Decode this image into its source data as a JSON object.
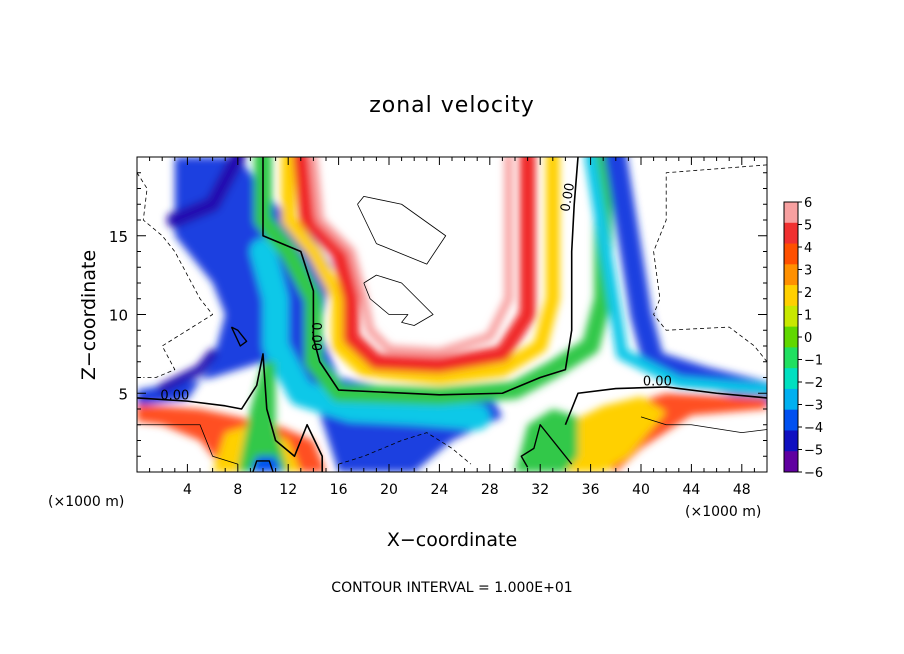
{
  "chart_data": {
    "type": "heatmap",
    "title": "zonal velocity",
    "xlabel": "X−coordinate",
    "ylabel": "Z−coordinate",
    "x_unit_label": "(×1000 m)",
    "x_unit_label_right": "(×1000 m)",
    "footer": "CONTOUR INTERVAL = 1.000E+01",
    "xlim": [
      0,
      50
    ],
    "ylim": [
      0,
      20
    ],
    "x_ticks": [
      4,
      8,
      12,
      16,
      20,
      24,
      28,
      32,
      36,
      40,
      44,
      48
    ],
    "y_ticks": [
      5,
      10,
      15
    ],
    "colorbar": {
      "min": -6,
      "max": 6,
      "labels": [
        "6",
        "5",
        "4",
        "3",
        "2",
        "1",
        "0",
        "−1",
        "−2",
        "−3",
        "−4",
        "−5",
        "−6"
      ],
      "colors": [
        "#f7a0a0",
        "#f03030",
        "#ff5000",
        "#ff9000",
        "#ffd000",
        "#c8e800",
        "#60d800",
        "#20e060",
        "#00e0c0",
        "#00b0f0",
        "#0050f0",
        "#1010c0",
        "#6000a0"
      ]
    },
    "contour_labels": [
      {
        "text": "0.00",
        "x": 3.0,
        "y": 4.6
      },
      {
        "text": "0.00",
        "x": 13.9,
        "y": 8.6
      },
      {
        "text": "0.00",
        "x": 34.5,
        "y": 17.4
      },
      {
        "text": "0.00",
        "x": 41.3,
        "y": 5.5
      }
    ]
  }
}
